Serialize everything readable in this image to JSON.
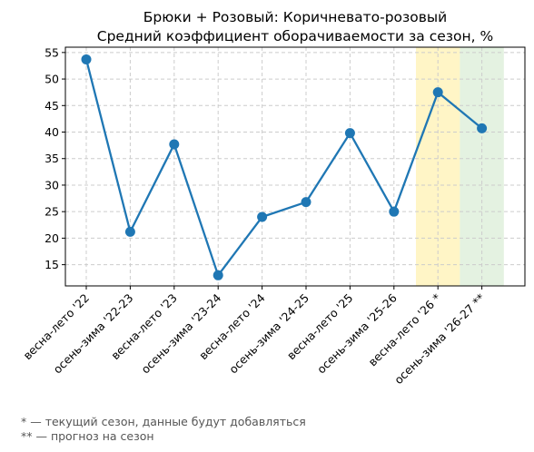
{
  "chart_data": {
    "type": "line",
    "title_line1": "Брюки + Розовый: Коричневато-розовый",
    "title_line2": "Средний коэффициент оборачиваемости за сезон, %",
    "xlabel": "",
    "ylabel": "",
    "categories": [
      "весна-лето '22",
      "осень-зима '22-23",
      "весна-лето '23",
      "осень-зима '23-24",
      "весна-лето '24",
      "осень-зима '24-25",
      "весна-лето '25",
      "осень-зима '25-26",
      "весна-лето '26 *",
      "осень-зима '26-27 **"
    ],
    "values": [
      53.7,
      21.2,
      37.7,
      13.0,
      24.0,
      26.8,
      39.8,
      25.0,
      47.5,
      40.7
    ],
    "ylim": [
      11,
      56
    ],
    "yticks": [
      15,
      20,
      25,
      30,
      35,
      40,
      45,
      50,
      55
    ],
    "grid": true,
    "line_color": "#1f77b4",
    "highlight_current_color": "#fff2b3",
    "highlight_forecast_color": "#d9ecd4"
  },
  "footnotes": {
    "current": "* — текущий сезон, данные будут добавляться",
    "forecast": "** — прогноз на сезон"
  }
}
